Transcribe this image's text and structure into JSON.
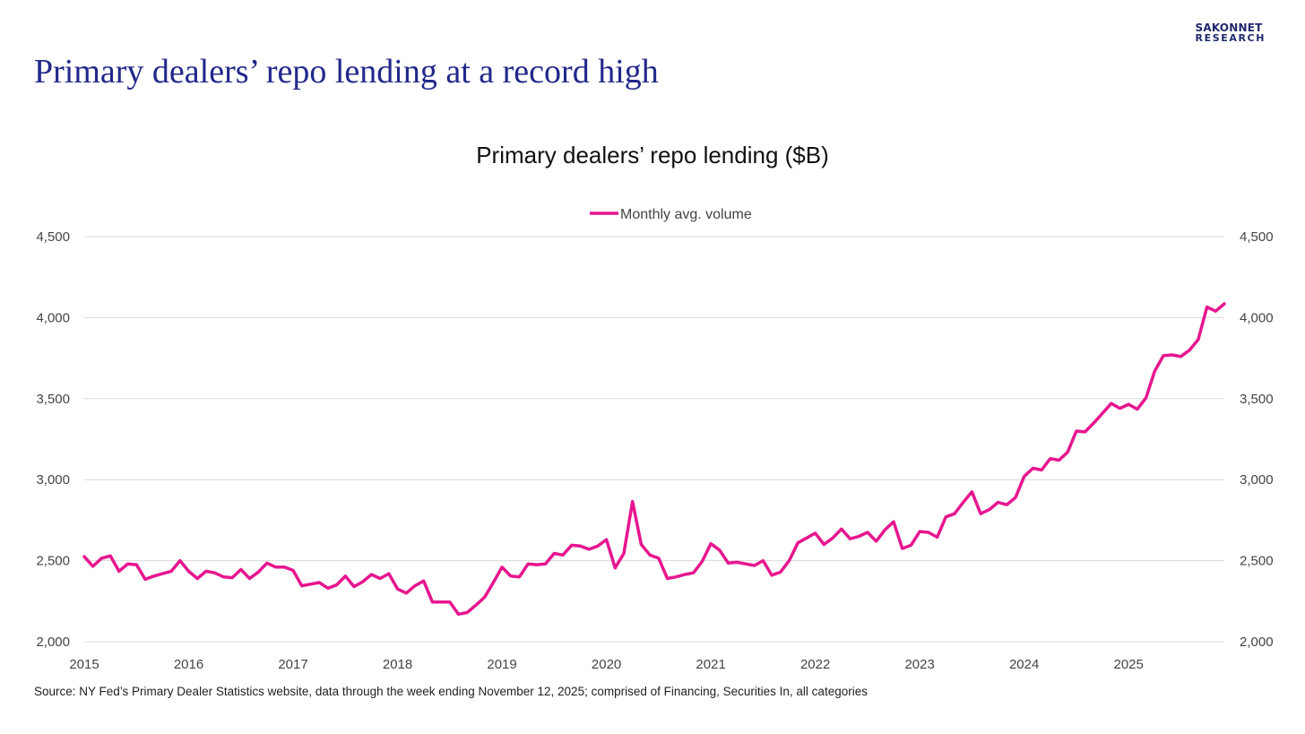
{
  "brand": {
    "line1": "SAKONNET",
    "line2": "RESEARCH"
  },
  "page_title": "Primary dealers’ repo lending at a record high",
  "source": "Source: NY Fed’s Primary Dealer Statistics website, data through the week ending November 12, 2025; comprised of Financing, Securities In, all categories",
  "colors": {
    "series": "#e6168f",
    "title": "#22288a",
    "brand": "#1f2a6b",
    "grid": "#d9d9d9"
  },
  "chart_data": {
    "type": "line",
    "title": "Primary dealers’ repo lending ($B)",
    "xlabel": "",
    "ylabel": "",
    "ylim": [
      2000,
      4500
    ],
    "yticks": [
      2000,
      2500,
      3000,
      3500,
      4000,
      4500
    ],
    "ytick_labels": [
      "2,000",
      "2,500",
      "3,000",
      "3,500",
      "4,000",
      "4,500"
    ],
    "secondary_axis": true,
    "x_tick_labels": [
      "2015",
      "2016",
      "2017",
      "2018",
      "2019",
      "2020",
      "2021",
      "2022",
      "2023",
      "2024",
      "2025"
    ],
    "x_start_year": 2015,
    "grid": true,
    "legend_position": "top-center",
    "series": [
      {
        "name": "Monthly avg. volume",
        "color": "#e6168f",
        "values": [
          2525,
          2465,
          2515,
          2530,
          2435,
          2480,
          2475,
          2385,
          2405,
          2420,
          2435,
          2500,
          2435,
          2390,
          2435,
          2425,
          2400,
          2395,
          2445,
          2390,
          2430,
          2485,
          2460,
          2460,
          2440,
          2345,
          2355,
          2365,
          2330,
          2350,
          2405,
          2340,
          2370,
          2415,
          2390,
          2420,
          2325,
          2300,
          2345,
          2375,
          2245,
          2245,
          2245,
          2170,
          2180,
          2225,
          2275,
          2365,
          2460,
          2405,
          2400,
          2480,
          2475,
          2480,
          2545,
          2535,
          2595,
          2590,
          2570,
          2590,
          2630,
          2455,
          2545,
          2865,
          2600,
          2535,
          2515,
          2390,
          2400,
          2415,
          2425,
          2495,
          2605,
          2565,
          2485,
          2490,
          2480,
          2470,
          2500,
          2410,
          2430,
          2500,
          2610,
          2640,
          2670,
          2600,
          2640,
          2695,
          2635,
          2650,
          2675,
          2620,
          2690,
          2740,
          2575,
          2595,
          2680,
          2675,
          2645,
          2770,
          2790,
          2860,
          2925,
          2790,
          2815,
          2860,
          2845,
          2890,
          3020,
          3070,
          3060,
          3130,
          3120,
          3170,
          3300,
          3295,
          3350,
          3410,
          3470,
          3440,
          3465,
          3435,
          3505,
          3670,
          3765,
          3770,
          3760,
          3800,
          3865,
          4065,
          4040,
          4085
        ]
      }
    ]
  }
}
